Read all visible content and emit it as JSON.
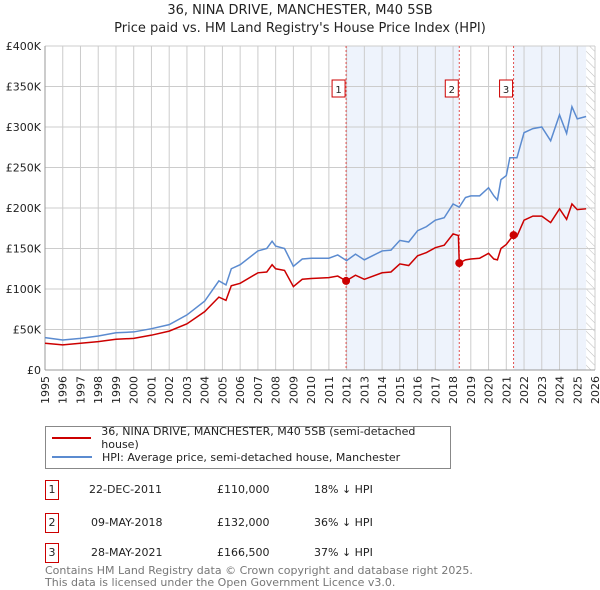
{
  "chart_data": {
    "type": "line",
    "title": "36, NINA DRIVE, MANCHESTER, M40 5SB",
    "subtitle": "Price paid vs. HM Land Registry's House Price Index (HPI)",
    "xlim": [
      1995,
      2026
    ],
    "ylim": [
      0,
      400000
    ],
    "x_ticks": [
      "1995",
      "1996",
      "1997",
      "1998",
      "1999",
      "2000",
      "2001",
      "2002",
      "2003",
      "2004",
      "2005",
      "2006",
      "2007",
      "2008",
      "2009",
      "2010",
      "2011",
      "2012",
      "2013",
      "2014",
      "2015",
      "2016",
      "2017",
      "2018",
      "2019",
      "2020",
      "2021",
      "2022",
      "2023",
      "2024",
      "2025",
      "2026"
    ],
    "y_ticks": [
      {
        "v": 0,
        "label": "£0"
      },
      {
        "v": 50000,
        "label": "£50K"
      },
      {
        "v": 100000,
        "label": "£100K"
      },
      {
        "v": 150000,
        "label": "£150K"
      },
      {
        "v": 200000,
        "label": "£200K"
      },
      {
        "v": 250000,
        "label": "£250K"
      },
      {
        "v": 300000,
        "label": "£300K"
      },
      {
        "v": 350000,
        "label": "£350K"
      },
      {
        "v": 400000,
        "label": "£400K"
      }
    ],
    "grid": true,
    "series": [
      {
        "name": "36, NINA DRIVE, MANCHESTER, M40 5SB (semi-detached house)",
        "color": "#cc0000",
        "x": [
          1995,
          1996,
          1997,
          1998,
          1999,
          2000,
          2001,
          2002,
          2003,
          2004,
          2004.8,
          2005.2,
          2005.5,
          2006,
          2007,
          2007.5,
          2007.8,
          2008,
          2008.5,
          2009,
          2009.5,
          2010,
          2011,
          2011.5,
          2011.97,
          2012.5,
          2013,
          2014,
          2014.5,
          2015,
          2015.5,
          2016,
          2016.5,
          2017,
          2017.5,
          2018,
          2018.3,
          2018.35,
          2018.7,
          2019,
          2019.5,
          2020,
          2020.3,
          2020.5,
          2020.7,
          2021,
          2021.4,
          2021.6,
          2022,
          2022.5,
          2023,
          2023.5,
          2024,
          2024.4,
          2024.7,
          2025,
          2025.5
        ],
        "y": [
          33000,
          31000,
          33000,
          35000,
          38000,
          39000,
          43000,
          48000,
          57000,
          72000,
          90000,
          86000,
          104000,
          107000,
          120000,
          121000,
          130000,
          125000,
          123000,
          103000,
          112000,
          113000,
          114000,
          116000,
          110000,
          117000,
          112000,
          120000,
          121000,
          131000,
          129000,
          141000,
          145000,
          151000,
          154000,
          168000,
          166000,
          132000,
          136000,
          137000,
          138000,
          144000,
          137000,
          136000,
          150000,
          155000,
          166500,
          165000,
          185000,
          190000,
          190000,
          182000,
          199000,
          186000,
          205000,
          198000,
          199000
        ]
      },
      {
        "name": "HPI: Average price, semi-detached house, Manchester",
        "color": "#5b8bd0",
        "x": [
          1995,
          1996,
          1997,
          1998,
          1999,
          2000,
          2001,
          2002,
          2003,
          2004,
          2004.8,
          2005.2,
          2005.5,
          2006,
          2007,
          2007.5,
          2007.8,
          2008,
          2008.5,
          2009,
          2009.5,
          2010,
          2011,
          2011.5,
          2012,
          2012.5,
          2013,
          2014,
          2014.5,
          2015,
          2015.5,
          2016,
          2016.5,
          2017,
          2017.5,
          2018,
          2018.35,
          2018.7,
          2019,
          2019.5,
          2020,
          2020.3,
          2020.5,
          2020.7,
          2021,
          2021.2,
          2021.6,
          2022,
          2022.5,
          2023,
          2023.5,
          2024,
          2024.4,
          2024.7,
          2025,
          2025.5
        ],
        "y": [
          40000,
          37000,
          39000,
          42000,
          46000,
          47000,
          51000,
          56000,
          68000,
          85000,
          110000,
          105000,
          125000,
          130000,
          147000,
          150000,
          159000,
          153000,
          150000,
          128000,
          137000,
          138000,
          138000,
          142000,
          135000,
          143000,
          136000,
          147000,
          148000,
          160000,
          158000,
          172000,
          177000,
          185000,
          188000,
          205000,
          201000,
          213000,
          215000,
          215000,
          225000,
          215000,
          210000,
          235000,
          240000,
          262000,
          262000,
          293000,
          298000,
          300000,
          283000,
          315000,
          292000,
          325000,
          310000,
          313000
        ]
      }
    ],
    "sales": [
      {
        "n": "1",
        "x": 2011.97,
        "date": "22-DEC-2011",
        "price_value": 110000,
        "price": "£110,000",
        "hpi": "18% ↓ HPI"
      },
      {
        "n": "2",
        "x": 2018.35,
        "date": "09-MAY-2018",
        "price_value": 132000,
        "price": "£132,000",
        "hpi": "36% ↓ HPI"
      },
      {
        "n": "3",
        "x": 2021.41,
        "date": "28-MAY-2021",
        "price_value": 166500,
        "price": "£166,500",
        "hpi": "37% ↓ HPI"
      }
    ],
    "shaded_ranges": [
      [
        2011.97,
        2018.35
      ],
      [
        2021.41,
        2025.5
      ]
    ],
    "hatched_from": 2025.5,
    "legend": "below"
  },
  "footer": {
    "line1": "Contains HM Land Registry data © Crown copyright and database right 2025.",
    "line2": "This data is licensed under the Open Government Licence v3.0."
  }
}
